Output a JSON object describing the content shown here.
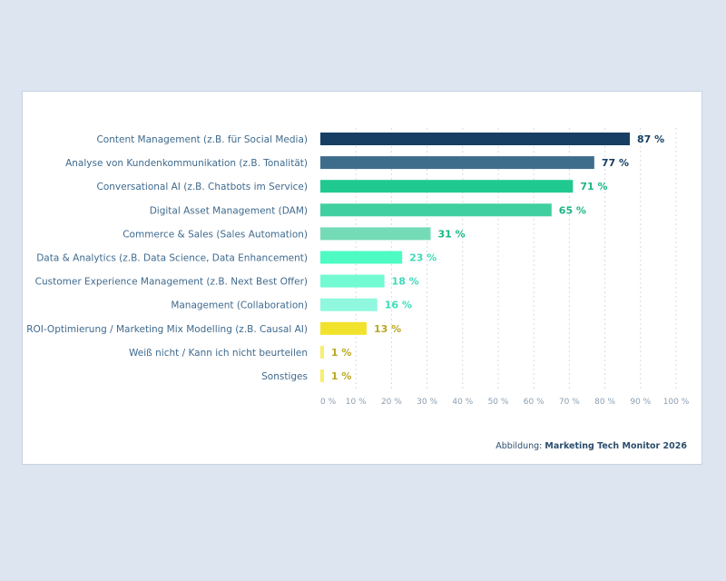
{
  "chart_data": {
    "type": "bar",
    "orientation": "horizontal",
    "categories": [
      "Content Management (z.B. für Social Media)",
      "Analyse von Kundenkommunikation (z.B. Tonalität)",
      "Conversational AI (z.B. Chatbots im Service)",
      "Digital Asset Management (DAM)",
      "Commerce & Sales (Sales Automation)",
      "Data & Analytics (z.B. Data Science, Data Enhancement)",
      "Customer Experience Management (z.B. Next Best Offer)",
      "Management (Collaboration)",
      "ROI-Optimierung / Marketing Mix Modelling (z.B. Causal AI)",
      "Weiß nicht / Kann ich nicht beurteilen",
      "Sonstiges"
    ],
    "values": [
      87,
      77,
      71,
      65,
      31,
      23,
      18,
      16,
      13,
      1,
      1
    ],
    "value_labels": [
      "87 %",
      "77 %",
      "71 %",
      "65 %",
      "31 %",
      "23 %",
      "18 %",
      "16 %",
      "13 %",
      "1 %",
      "1 %"
    ],
    "bar_colors": [
      "#163f63",
      "#3e6d8c",
      "#1fc98f",
      "#40cfa0",
      "#74dbb7",
      "#4dfbc3",
      "#72fbd2",
      "#8ff8de",
      "#f1e22c",
      "#f6ee70",
      "#f6ee70"
    ],
    "label_colors": [
      "#163f63",
      "#163f63",
      "#1ab585",
      "#1ab585",
      "#1ab585",
      "#3cdcb8",
      "#3cdcb8",
      "#3cdcb8",
      "#b9a823",
      "#b9a823",
      "#b9a823"
    ],
    "xlim": [
      0,
      100
    ],
    "x_ticks": [
      0,
      10,
      20,
      30,
      40,
      50,
      60,
      70,
      80,
      90,
      100
    ],
    "x_tick_labels": [
      "0 %",
      "10 %",
      "20 %",
      "30 %",
      "40 %",
      "50 %",
      "60 %",
      "70 %",
      "80 %",
      "90 %",
      "100 %"
    ],
    "grid": "vertical dashed",
    "title": "",
    "xlabel": "",
    "ylabel": ""
  },
  "source": {
    "prefix": "Abbildung: ",
    "name": "Marketing Tech Monitor 2026"
  }
}
